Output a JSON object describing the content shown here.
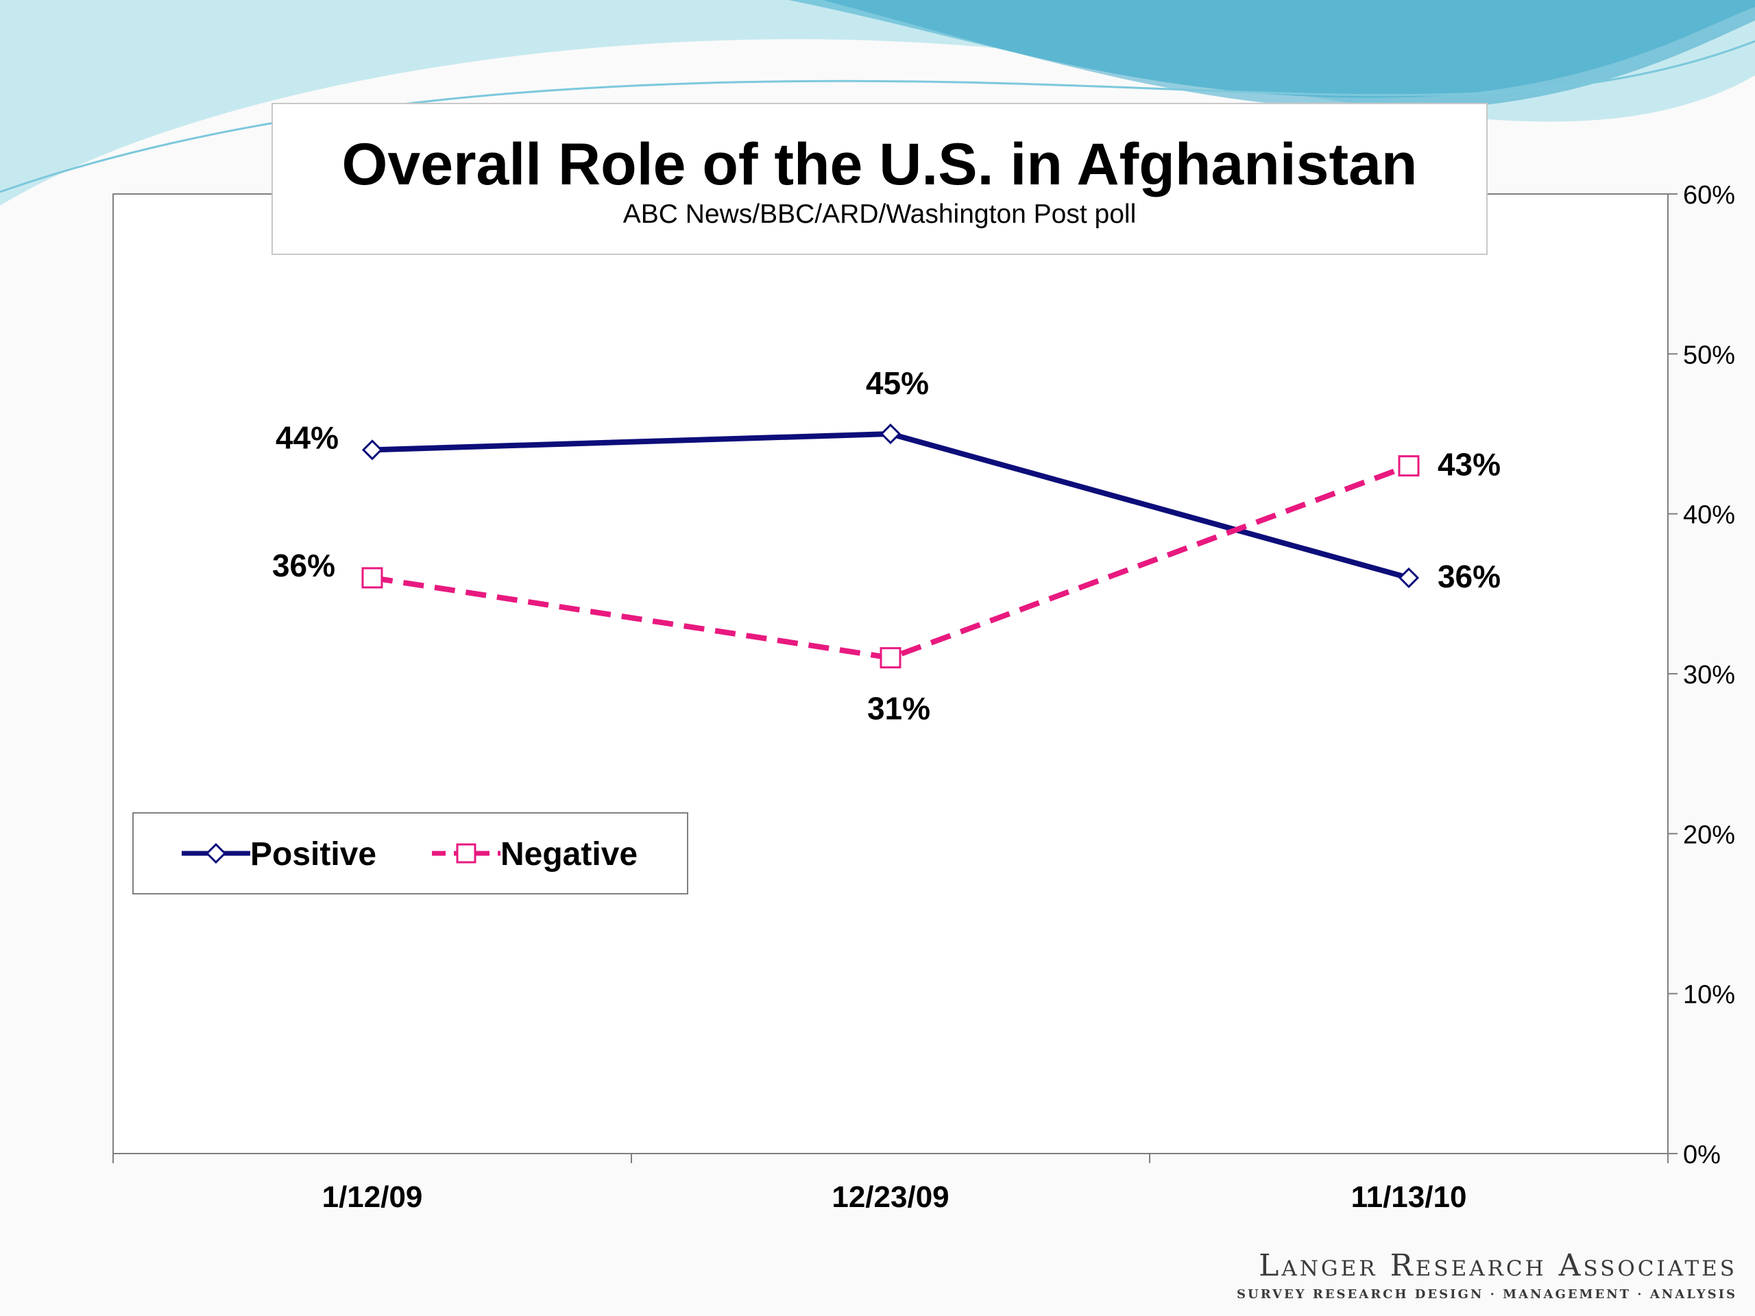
{
  "colors": {
    "positive": "#0d0d7a",
    "negative": "#e8197f",
    "axis": "#7f7f7f",
    "wave_light": "#c6e9ef",
    "wave_mid": "#7cc8dc",
    "wave_dark": "#3fa7c9"
  },
  "branding": {
    "name": "Langer Research Associates",
    "tagline": "SURVEY RESEARCH DESIGN · MANAGEMENT · ANALYSIS"
  },
  "chart_data": {
    "type": "line",
    "title": "Overall Role of the U.S. in Afghanistan",
    "subtitle": "ABC News/BBC/ARD/Washington Post poll",
    "categories": [
      "1/12/09",
      "12/23/09",
      "11/13/10"
    ],
    "series": [
      {
        "name": "Positive",
        "values": [
          44,
          45,
          36
        ],
        "labels": [
          "44%",
          "45%",
          "36%"
        ],
        "marker": "diamond",
        "line": "solid"
      },
      {
        "name": "Negative",
        "values": [
          36,
          31,
          43
        ],
        "labels": [
          "36%",
          "31%",
          "43%"
        ],
        "marker": "square",
        "line": "dashed"
      }
    ],
    "y_axis": {
      "position": "right",
      "range": [
        0,
        60
      ],
      "ticks": [
        0,
        10,
        20,
        30,
        40,
        50,
        60
      ],
      "tick_labels": [
        "0%",
        "10%",
        "20%",
        "30%",
        "40%",
        "50%",
        "60%"
      ]
    },
    "grid": false,
    "legend": {
      "placement": "left-middle",
      "entries": [
        "Positive",
        "Negative"
      ]
    }
  }
}
